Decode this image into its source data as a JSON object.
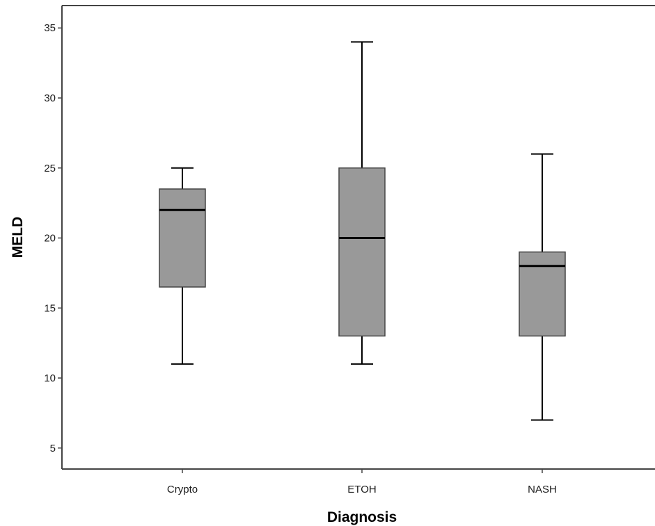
{
  "chart_data": {
    "type": "boxplot",
    "title": "",
    "xlabel": "Diagnosis",
    "ylabel": "MELD",
    "ylim": [
      3.5,
      36.6
    ],
    "yticks": [
      5,
      10,
      15,
      20,
      25,
      30,
      35
    ],
    "grid": false,
    "categories": [
      "Crypto",
      "ETOH",
      "NASH"
    ],
    "boxes": [
      {
        "category": "Crypto",
        "min": 11,
        "q1": 16.5,
        "median": 22,
        "q3": 23.5,
        "max": 25
      },
      {
        "category": "ETOH",
        "min": 11,
        "q1": 13,
        "median": 20,
        "q3": 25,
        "max": 34
      },
      {
        "category": "NASH",
        "min": 7,
        "q1": 13,
        "median": 18,
        "q3": 19,
        "max": 26
      }
    ],
    "colors": {
      "box_fill": "#999999",
      "box_stroke": "#444444",
      "median": "#000000",
      "whisker": "#000000",
      "axis": "#444444"
    }
  }
}
